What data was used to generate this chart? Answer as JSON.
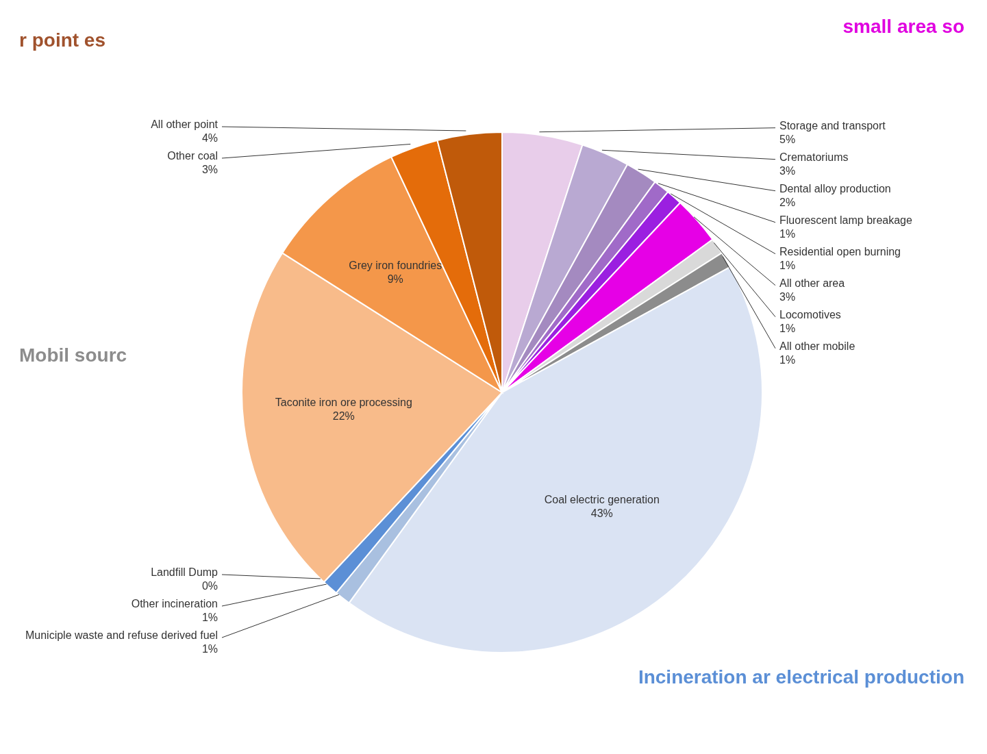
{
  "chart_data": {
    "type": "pie",
    "categories": [
      "Storage and transport",
      "Crematoriums",
      "Dental alloy production",
      "Fluorescent lamp  breakage",
      "Residential open burning",
      "All other area",
      "Locomotives",
      "All other mobile",
      "Coal electric generation",
      "Municiple waste and refuse derived fuel",
      "Other incineration",
      "Landfill Dump",
      "Taconite  iron ore processing",
      "Grey iron foundries",
      "Other coal",
      "All other point"
    ],
    "values": [
      5,
      3,
      2,
      1,
      1,
      3,
      1,
      1,
      43,
      1,
      1,
      0,
      22,
      9,
      3,
      4
    ],
    "colors": [
      "#e8cdea",
      "#b9a9d2",
      "#a48ac0",
      "#a06ac8",
      "#9b1fe0",
      "#e600e6",
      "#d9d9d9",
      "#8c8c8c",
      "#dae3f3",
      "#a9c0e0",
      "#5b8fd6",
      "#c00000",
      "#f8bb8a",
      "#f4974a",
      "#e46c0a",
      "#c05a0a"
    ],
    "value_labels": [
      "5%",
      "3%",
      "2%",
      "1%",
      "1%",
      "3%",
      "1%",
      "1%",
      "43%",
      "1%",
      "1%",
      "0%",
      "22%",
      "9%",
      "3%",
      "4%"
    ],
    "annotations": [
      "r point es",
      "small area so",
      "Mobil sourc",
      "Incineration ar electrical production"
    ]
  }
}
